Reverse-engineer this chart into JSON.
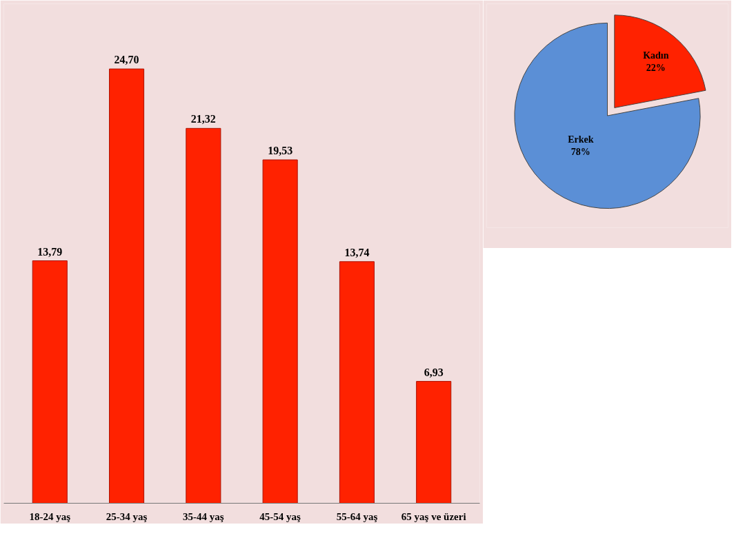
{
  "chart_data": [
    {
      "type": "bar",
      "categories": [
        "18-24 yaş",
        "25-34 yaş",
        "35-44 yaş",
        "45-54 yaş",
        "55-64 yaş",
        "65 yaş ve üzeri"
      ],
      "values": [
        13.79,
        24.7,
        21.32,
        19.53,
        13.74,
        6.93
      ],
      "value_labels": [
        "13,79",
        "24,70",
        "21,32",
        "19,53",
        "13,74",
        "6,93"
      ],
      "color": "#ff2200",
      "grid": false
    },
    {
      "type": "pie",
      "categories": [
        "Kadın",
        "Erkek"
      ],
      "values": [
        22,
        78
      ],
      "value_labels": [
        "22%",
        "78%"
      ],
      "colors": [
        "#ff2200",
        "#5b8fd6"
      ]
    }
  ]
}
